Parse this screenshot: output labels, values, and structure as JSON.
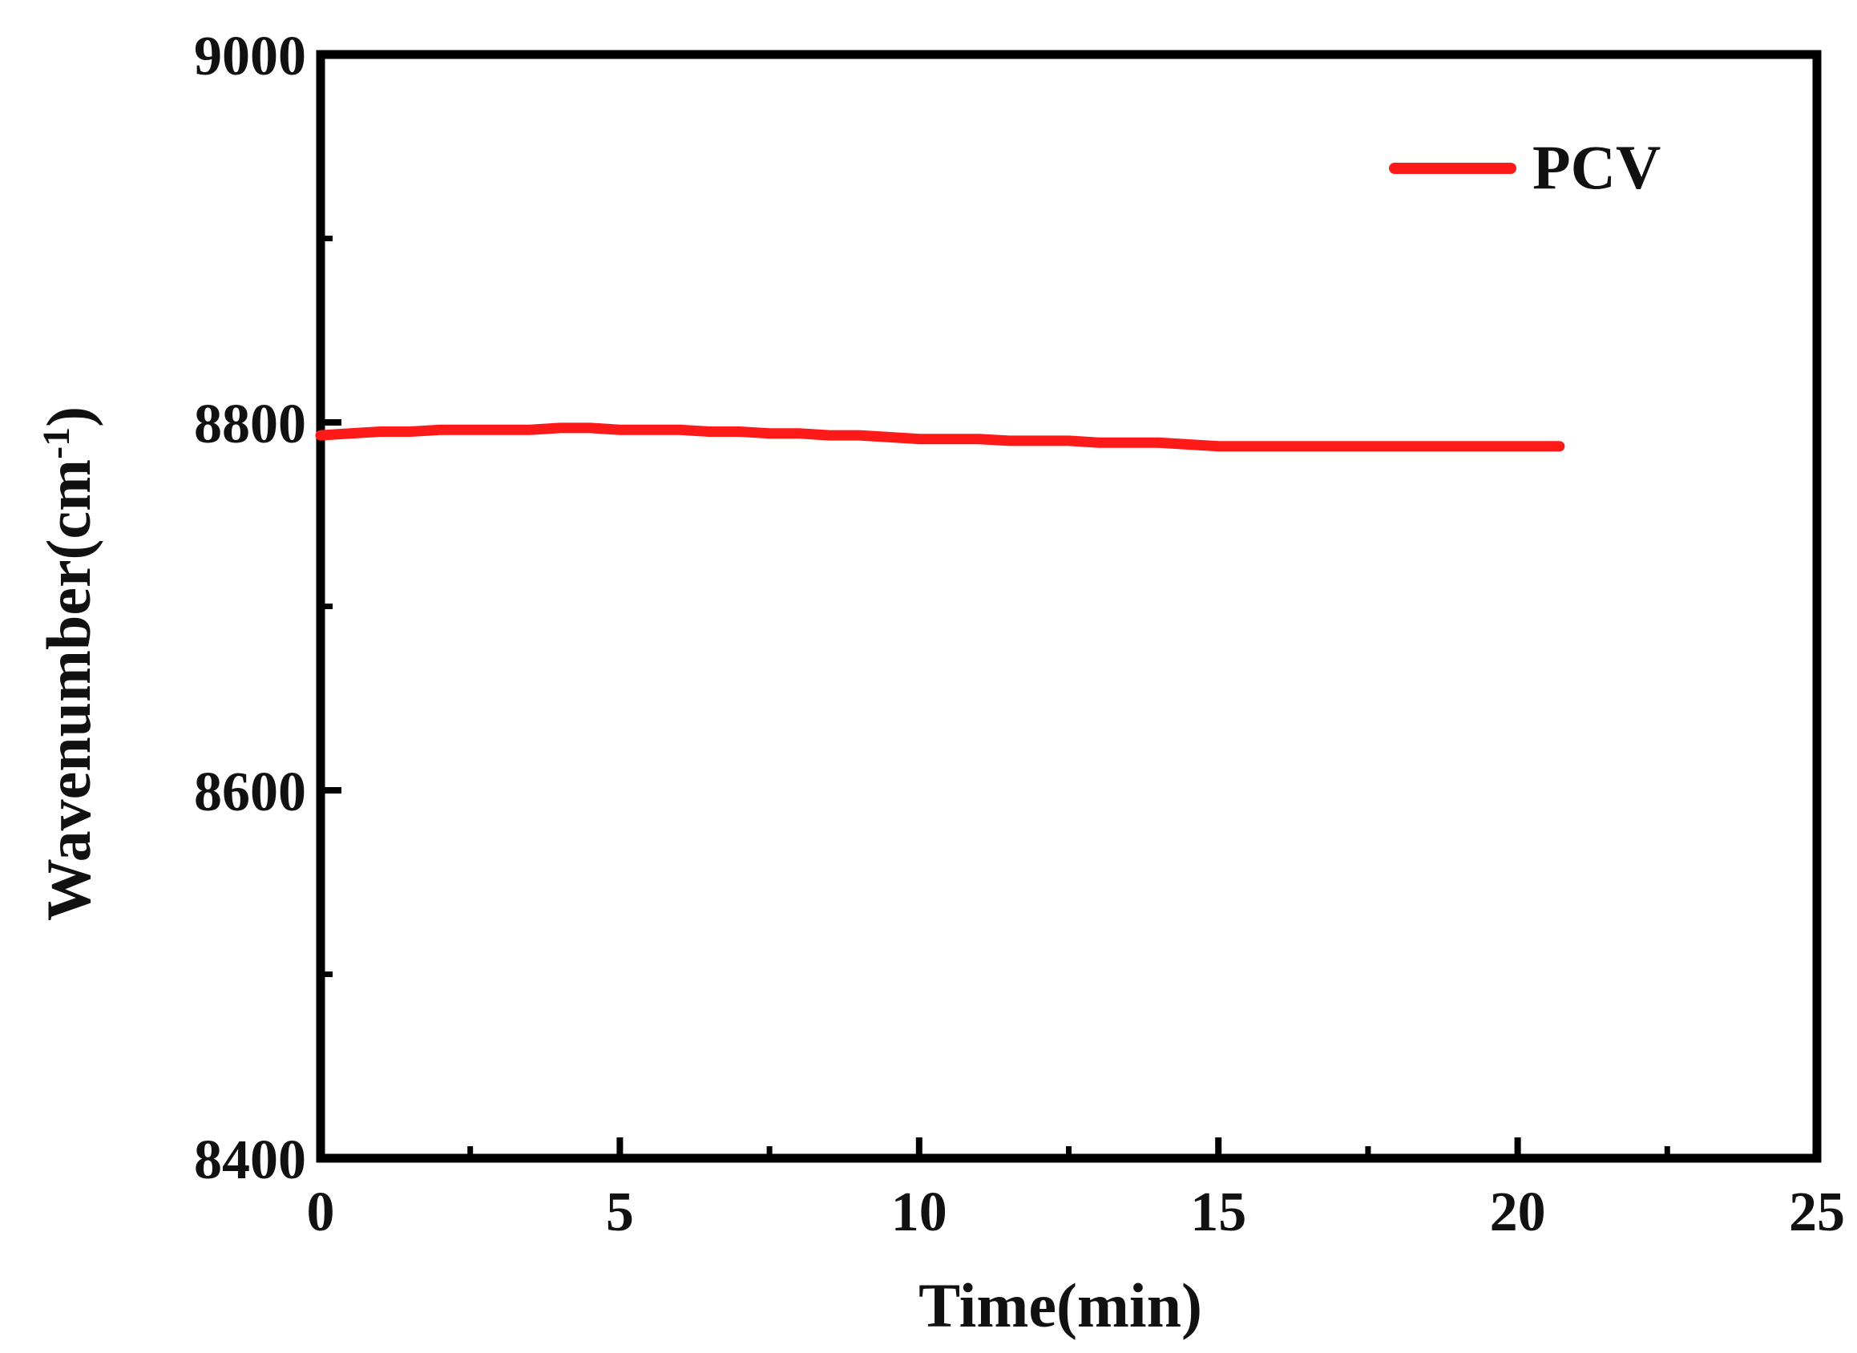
{
  "chart_data": {
    "type": "line",
    "title": "",
    "xlabel": "Time(min)",
    "ylabel_main": "Wavenumber(cm",
    "ylabel_sup": "-1",
    "ylabel_close": ")",
    "xlim": [
      0,
      25
    ],
    "ylim": [
      8400,
      9000
    ],
    "xticks": [
      0,
      5,
      10,
      15,
      20,
      25
    ],
    "xtick_labels": [
      "0",
      "5",
      "10",
      "15",
      "20",
      "25"
    ],
    "x_minor_ticks": [
      2.5,
      7.5,
      12.5,
      17.5,
      22.5
    ],
    "yticks": [
      8400,
      8600,
      8800,
      9000
    ],
    "ytick_labels": [
      "8400",
      "8600",
      "8800",
      "9000"
    ],
    "y_minor_ticks": [
      8500,
      8700,
      8900
    ],
    "grid": false,
    "legend_position": "top-right",
    "series": [
      {
        "name": "PCV",
        "color": "#ff1a1a",
        "x": [
          0,
          0.5,
          1,
          1.5,
          2,
          2.5,
          3,
          3.5,
          4,
          4.5,
          5,
          5.5,
          6,
          6.5,
          7,
          7.5,
          8,
          8.5,
          9,
          9.5,
          10,
          10.5,
          11,
          11.5,
          12,
          12.5,
          13,
          13.5,
          14,
          14.5,
          15,
          15.5,
          16,
          16.5,
          17,
          17.5,
          18,
          18.5,
          19,
          19.5,
          20,
          20.5,
          20.7
        ],
        "y": [
          8793,
          8794,
          8795,
          8795,
          8796,
          8796,
          8796,
          8796,
          8797,
          8797,
          8796,
          8796,
          8796,
          8795,
          8795,
          8794,
          8794,
          8793,
          8793,
          8792,
          8791,
          8791,
          8791,
          8790,
          8790,
          8790,
          8789,
          8789,
          8789,
          8788,
          8787,
          8787,
          8787,
          8787,
          8787,
          8787,
          8787,
          8787,
          8787,
          8787,
          8787,
          8787,
          8787
        ]
      }
    ]
  }
}
